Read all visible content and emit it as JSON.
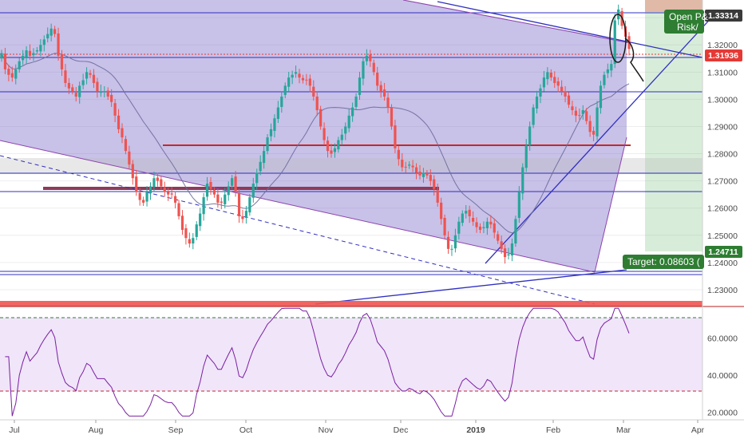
{
  "chart_data": {
    "type": "candlestick",
    "price_axis": {
      "ticks": [
        "1.33000",
        "1.32000",
        "1.31000",
        "1.30000",
        "1.29000",
        "1.28000",
        "1.27000",
        "1.26000",
        "1.25000",
        "1.24000",
        "1.23000"
      ],
      "ylim": [
        1.225,
        1.3365
      ]
    },
    "rsi_axis": {
      "ticks": [
        "60.0000",
        "40.0000",
        "20.0000"
      ],
      "ylim": [
        16,
        77
      ],
      "upper_band": 70,
      "lower_band": 30
    },
    "time_axis": [
      "Jul",
      "Aug",
      "Sep",
      "Oct",
      "Nov",
      "Dec",
      "2019",
      "Feb",
      "Mar",
      "Apr"
    ],
    "badges": {
      "high": "1.33314",
      "current": "1.31936",
      "target_price": "1.24711"
    },
    "position_box": {
      "line1": "Open P&",
      "line2": "Risk/",
      "target_label": "Target: 0.08603 ("
    },
    "candle_closes": [
      1.317,
      1.311,
      1.309,
      1.308,
      1.311,
      1.314,
      1.316,
      1.318,
      1.316,
      1.317,
      1.318,
      1.32,
      1.322,
      1.324,
      1.326,
      1.324,
      1.316,
      1.311,
      1.306,
      1.304,
      1.303,
      1.301,
      1.305,
      1.307,
      1.31,
      1.309,
      1.306,
      1.303,
      1.303,
      1.303,
      1.301,
      1.299,
      1.294,
      1.289,
      1.286,
      1.281,
      1.276,
      1.271,
      1.266,
      1.263,
      1.262,
      1.266,
      1.268,
      1.271,
      1.27,
      1.268,
      1.266,
      1.265,
      1.265,
      1.262,
      1.257,
      1.252,
      1.249,
      1.247,
      1.249,
      1.254,
      1.258,
      1.264,
      1.269,
      1.267,
      1.265,
      1.262,
      1.262,
      1.265,
      1.268,
      1.271,
      1.266,
      1.257,
      1.256,
      1.259,
      1.264,
      1.269,
      1.273,
      1.277,
      1.281,
      1.286,
      1.289,
      1.293,
      1.297,
      1.301,
      1.305,
      1.308,
      1.309,
      1.31,
      1.308,
      1.307,
      1.307,
      1.305,
      1.301,
      1.296,
      1.29,
      1.285,
      1.281,
      1.28,
      1.282,
      1.285,
      1.287,
      1.29,
      1.294,
      1.297,
      1.301,
      1.308,
      1.314,
      1.316,
      1.314,
      1.31,
      1.305,
      1.303,
      1.301,
      1.297,
      1.29,
      1.282,
      1.278,
      1.275,
      1.275,
      1.276,
      1.275,
      1.273,
      1.272,
      1.273,
      1.272,
      1.27,
      1.267,
      1.262,
      1.256,
      1.25,
      1.245,
      1.245,
      1.25,
      1.255,
      1.258,
      1.259,
      1.257,
      1.255,
      1.253,
      1.252,
      1.253,
      1.255,
      1.254,
      1.251,
      1.248,
      1.245,
      1.242,
      1.243,
      1.247,
      1.256,
      1.266,
      1.275,
      1.283,
      1.29,
      1.297,
      1.301,
      1.304,
      1.308,
      1.31,
      1.308,
      1.306,
      1.305,
      1.303,
      1.301,
      1.298,
      1.296,
      1.294,
      1.294,
      1.296,
      1.292,
      1.288,
      1.287,
      1.297,
      1.305,
      1.309,
      1.311,
      1.313,
      1.329,
      1.333,
      1.327,
      1.323,
      1.3185
    ]
  }
}
